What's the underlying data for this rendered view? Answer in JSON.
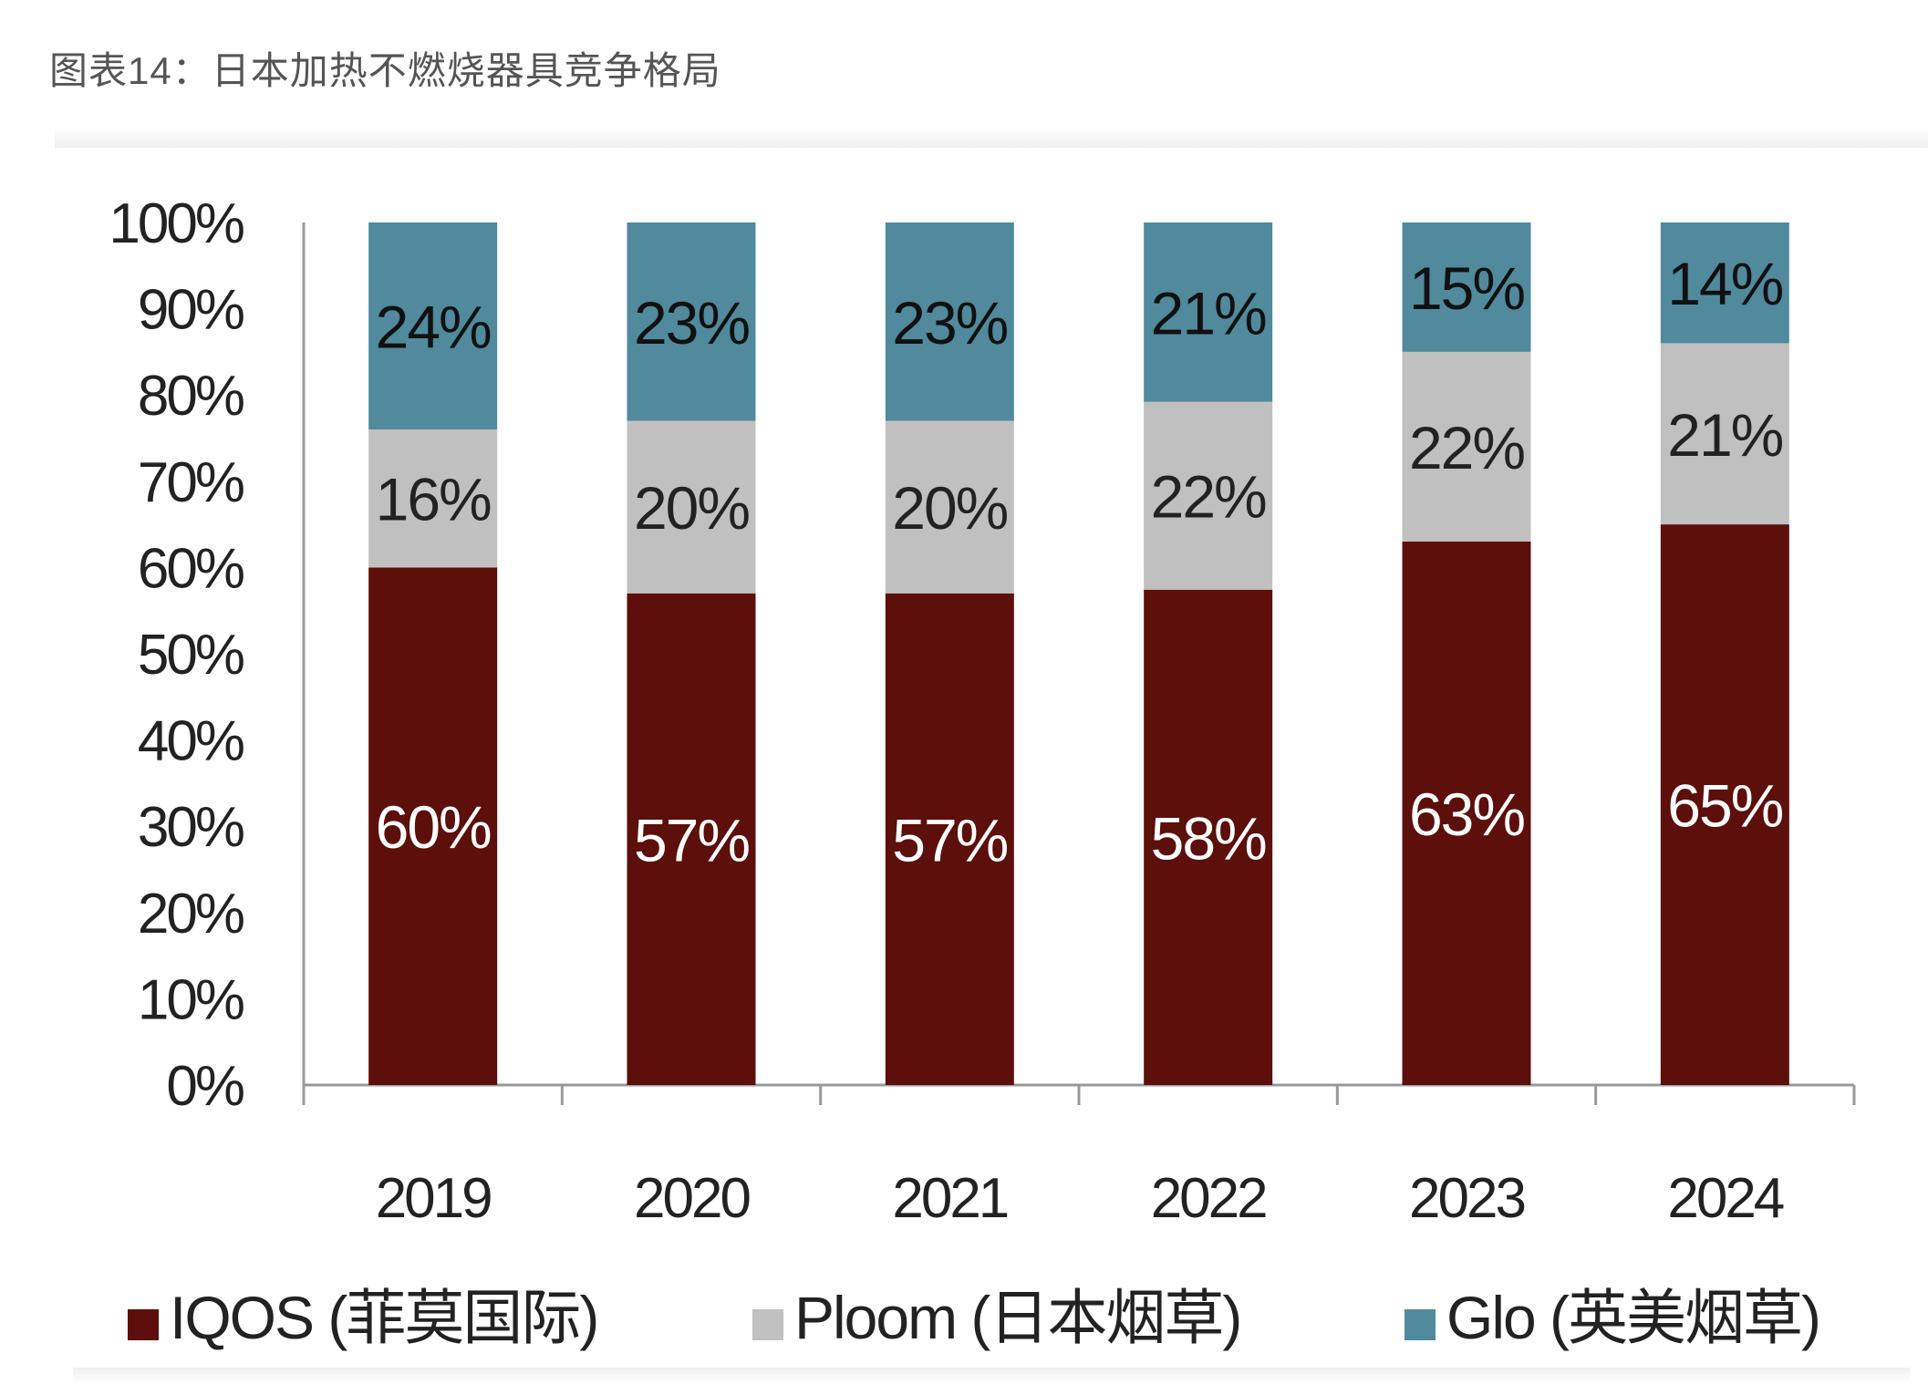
{
  "title": "图表14：日本加热不燃烧器具竞争格局",
  "chart_data": {
    "type": "bar",
    "stacked": true,
    "title": "图表14：日本加热不燃烧器具竞争格局",
    "xlabel": "",
    "ylabel": "",
    "ylim": [
      0,
      100
    ],
    "yticks": [
      "0%",
      "10%",
      "20%",
      "30%",
      "40%",
      "50%",
      "60%",
      "70%",
      "80%",
      "90%",
      "100%"
    ],
    "categories": [
      "2019",
      "2020",
      "2021",
      "2022",
      "2023",
      "2024"
    ],
    "series": [
      {
        "name": "IQOS (菲莫国际)",
        "color": "#5c0f0b",
        "label_color": "#ffffff",
        "values": [
          60,
          57,
          57,
          58,
          63,
          65
        ]
      },
      {
        "name": "Ploom (日本烟草)",
        "color": "#c0c0c0",
        "label_color": "#222222",
        "values": [
          16,
          20,
          20,
          22,
          22,
          21
        ]
      },
      {
        "name": "Glo (英美烟草)",
        "color": "#508a9c",
        "label_color": "#111111",
        "values": [
          24,
          23,
          23,
          21,
          15,
          14
        ]
      }
    ],
    "grid": false,
    "legend": "bottom"
  }
}
